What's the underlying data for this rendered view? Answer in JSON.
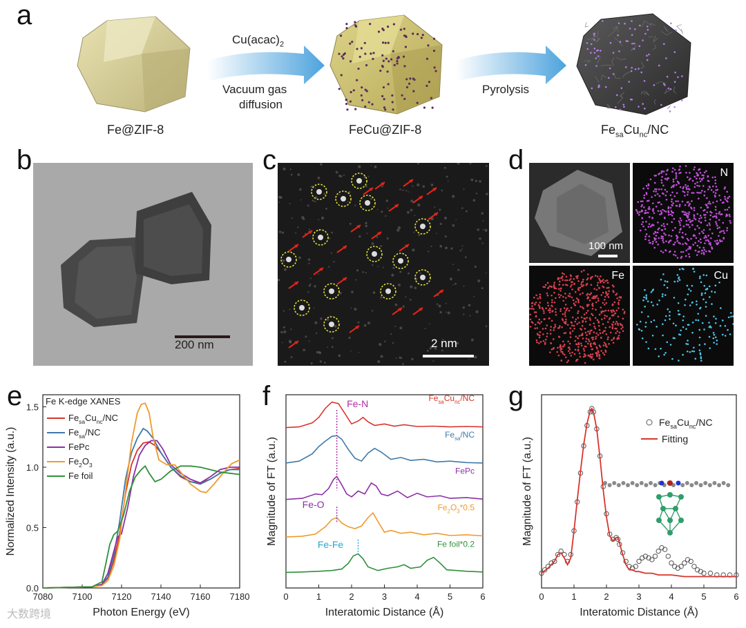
{
  "panel_a": {
    "letter": "a",
    "step1_top": "Cu(acac)",
    "step1_top_sub": "2",
    "step1_bottom_line1": "Vacuum gas",
    "step1_bottom_line2": "diffusion",
    "step2": "Pyrolysis",
    "label1": "Fe@ZIF-8",
    "label2": "FeCu@ZIF-8",
    "label3": {
      "p1": "Fe",
      "s1": "sa",
      "p2": "Cu",
      "s2": "nc",
      "p3": "/NC"
    }
  },
  "panel_b": {
    "letter": "b",
    "scale": "200 nm"
  },
  "panel_c": {
    "letter": "c",
    "scale": "2 nm"
  },
  "panel_d": {
    "letter": "d",
    "scale": "100 nm",
    "map_n": "N",
    "map_fe": "Fe",
    "map_cu": "Cu"
  },
  "panel_e": {
    "letter": "e"
  },
  "panel_f": {
    "letter": "f"
  },
  "panel_g": {
    "letter": "g"
  },
  "watermark": "大数跨境",
  "chart_data": [
    {
      "panel": "e",
      "type": "line",
      "title": "Fe K-edge XANES",
      "xlabel": "Photon Energy (eV)",
      "ylabel": "Normalized Intensity (a.u.)",
      "xlim": [
        7080,
        7180
      ],
      "ylim": [
        0.0,
        1.6
      ],
      "xticks": [
        "7080",
        "7100",
        "7120",
        "7140",
        "7160",
        "7180"
      ],
      "yticks": [
        "0.0",
        "0.5",
        "1.0",
        "1.5"
      ],
      "series": [
        {
          "name": "FesaCunc/NC",
          "color": "#d7342b",
          "x": [
            7080,
            7105,
            7110,
            7113,
            7116,
            7119,
            7122,
            7125,
            7128,
            7131,
            7134,
            7137,
            7140,
            7145,
            7150,
            7155,
            7160,
            7165,
            7170,
            7175,
            7180
          ],
          "y": [
            0.0,
            0.01,
            0.03,
            0.08,
            0.22,
            0.45,
            0.78,
            1.02,
            1.14,
            1.2,
            1.21,
            1.18,
            1.12,
            1.0,
            0.92,
            0.88,
            0.87,
            0.9,
            0.95,
            0.98,
            0.99
          ]
        },
        {
          "name": "Fesa/NC",
          "color": "#3e79a8",
          "x": [
            7080,
            7105,
            7110,
            7113,
            7116,
            7119,
            7122,
            7125,
            7128,
            7131,
            7133,
            7136,
            7140,
            7145,
            7150,
            7155,
            7160,
            7165,
            7170,
            7175,
            7180
          ],
          "y": [
            0.0,
            0.01,
            0.03,
            0.09,
            0.26,
            0.55,
            0.9,
            1.12,
            1.24,
            1.32,
            1.3,
            1.24,
            1.12,
            1.0,
            0.93,
            0.88,
            0.86,
            0.9,
            0.95,
            0.98,
            0.98
          ]
        },
        {
          "name": "FePc",
          "color": "#8b2fa5",
          "x": [
            7080,
            7105,
            7110,
            7113,
            7116,
            7118,
            7120,
            7123,
            7126,
            7129,
            7132,
            7135,
            7138,
            7141,
            7145,
            7150,
            7155,
            7160,
            7165,
            7170,
            7175,
            7180
          ],
          "y": [
            0.0,
            0.01,
            0.03,
            0.12,
            0.3,
            0.42,
            0.45,
            0.66,
            0.92,
            1.1,
            1.18,
            1.22,
            1.22,
            1.15,
            1.02,
            0.95,
            0.9,
            0.87,
            0.92,
            0.98,
            1.0,
            1.0
          ]
        },
        {
          "name": "Fe2O3",
          "color": "#ef9a2a",
          "x": [
            7080,
            7105,
            7110,
            7113,
            7116,
            7119,
            7122,
            7125,
            7128,
            7130,
            7132,
            7134,
            7136,
            7139,
            7143,
            7147,
            7150,
            7155,
            7160,
            7163,
            7167,
            7172,
            7176,
            7180
          ],
          "y": [
            0.0,
            0.01,
            0.02,
            0.06,
            0.18,
            0.4,
            0.8,
            1.2,
            1.45,
            1.52,
            1.53,
            1.45,
            1.25,
            1.06,
            1.02,
            1.02,
            0.96,
            0.86,
            0.8,
            0.79,
            0.86,
            0.96,
            1.03,
            1.06
          ]
        },
        {
          "name": "Fe foil",
          "color": "#2f8f3a",
          "x": [
            7080,
            7105,
            7110,
            7112,
            7114,
            7116,
            7118,
            7121,
            7124,
            7127,
            7130,
            7132,
            7134,
            7137,
            7140,
            7145,
            7150,
            7155,
            7160,
            7165,
            7170,
            7175,
            7180
          ],
          "y": [
            0.0,
            0.01,
            0.05,
            0.2,
            0.36,
            0.44,
            0.47,
            0.6,
            0.8,
            0.92,
            0.98,
            1.01,
            0.95,
            0.88,
            0.9,
            0.97,
            1.01,
            1.01,
            1.0,
            0.98,
            0.96,
            0.95,
            0.94
          ]
        }
      ]
    },
    {
      "panel": "f",
      "type": "line",
      "xlabel": "Interatomic Distance (Å)",
      "ylabel": "Magnitude of FT (a.u.)",
      "xlim": [
        0,
        6
      ],
      "xticks": [
        "0",
        "1",
        "2",
        "3",
        "4",
        "5",
        "6"
      ],
      "annotations": [
        {
          "text": "Fe-N",
          "x": 1.55,
          "color": "#b02aa8"
        },
        {
          "text": "Fe-O",
          "x": 1.55,
          "color": "#8b2fa5"
        },
        {
          "text": "Fe-Fe",
          "x": 2.2,
          "color": "#2aa6c8"
        }
      ],
      "series": [
        {
          "name": "FesaCunc/NC",
          "color": "#d7342b",
          "offset": 4.0,
          "x": [
            0,
            0.4,
            0.8,
            1.0,
            1.2,
            1.4,
            1.6,
            1.8,
            2.0,
            2.2,
            2.35,
            2.5,
            2.7,
            3.0,
            3.3,
            3.6,
            4.0,
            4.5,
            5.0,
            5.5,
            6.0
          ],
          "y": [
            0.02,
            0.04,
            0.15,
            0.3,
            0.55,
            0.72,
            0.68,
            0.4,
            0.12,
            0.2,
            0.3,
            0.18,
            0.08,
            0.12,
            0.06,
            0.1,
            0.05,
            0.06,
            0.04,
            0.05,
            0.04
          ]
        },
        {
          "name": "Fesa/NC",
          "color": "#3e79a8",
          "offset": 3.0,
          "x": [
            0,
            0.4,
            0.8,
            1.0,
            1.2,
            1.4,
            1.55,
            1.7,
            1.9,
            2.1,
            2.3,
            2.5,
            2.7,
            2.9,
            3.2,
            3.5,
            3.8,
            4.2,
            4.6,
            5.0,
            5.5,
            6.0
          ],
          "y": [
            0.05,
            0.1,
            0.3,
            0.5,
            0.65,
            0.78,
            0.8,
            0.7,
            0.42,
            0.18,
            0.1,
            0.32,
            0.45,
            0.35,
            0.15,
            0.2,
            0.12,
            0.15,
            0.08,
            0.1,
            0.06,
            0.05
          ]
        },
        {
          "name": "FePc",
          "color": "#8b2fa5",
          "offset": 2.0,
          "x": [
            0,
            0.5,
            0.9,
            1.1,
            1.3,
            1.45,
            1.55,
            1.7,
            1.85,
            2.0,
            2.2,
            2.4,
            2.6,
            2.75,
            2.9,
            3.1,
            3.4,
            3.7,
            4.0,
            4.3,
            4.7,
            5.0,
            5.5,
            6.0
          ],
          "y": [
            0.05,
            0.08,
            0.2,
            0.18,
            0.35,
            0.6,
            0.68,
            0.45,
            0.2,
            0.12,
            0.28,
            0.2,
            0.5,
            0.42,
            0.2,
            0.15,
            0.28,
            0.1,
            0.22,
            0.12,
            0.15,
            0.08,
            0.1,
            0.06
          ]
        },
        {
          "name": "Fe2O3*0.5",
          "color": "#ef9a2a",
          "offset": 1.0,
          "x": [
            0,
            0.5,
            0.9,
            1.2,
            1.4,
            1.55,
            1.7,
            1.9,
            2.1,
            2.3,
            2.5,
            2.65,
            2.8,
            3.0,
            3.2,
            3.5,
            3.8,
            4.2,
            4.6,
            5.0,
            5.5,
            6.0
          ],
          "y": [
            0.02,
            0.04,
            0.1,
            0.3,
            0.5,
            0.55,
            0.4,
            0.3,
            0.25,
            0.32,
            0.55,
            0.68,
            0.45,
            0.15,
            0.2,
            0.12,
            0.15,
            0.08,
            0.12,
            0.06,
            0.08,
            0.05
          ]
        },
        {
          "name": "Fe foil*0.2",
          "color": "#2f8f3a",
          "offset": 0.0,
          "x": [
            0,
            0.5,
            1.0,
            1.4,
            1.7,
            1.9,
            2.05,
            2.2,
            2.35,
            2.5,
            2.8,
            3.1,
            3.4,
            3.6,
            3.8,
            4.1,
            4.3,
            4.5,
            4.7,
            4.9,
            5.2,
            5.5,
            6.0
          ],
          "y": [
            0.05,
            0.06,
            0.08,
            0.1,
            0.14,
            0.3,
            0.5,
            0.56,
            0.42,
            0.2,
            0.1,
            0.16,
            0.2,
            0.26,
            0.16,
            0.2,
            0.38,
            0.46,
            0.3,
            0.12,
            0.1,
            0.08,
            0.06
          ]
        }
      ]
    },
    {
      "panel": "g",
      "type": "line",
      "xlabel": "Interatomic Distance (Å)",
      "ylabel": "Magnitude of FT (a.u.)",
      "xlim": [
        0,
        6
      ],
      "xticks": [
        "0",
        "1",
        "2",
        "3",
        "4",
        "5",
        "6"
      ],
      "legend": [
        "FesaCunc/NC",
        "Fitting"
      ],
      "series": [
        {
          "name": "FesaCunc/NC",
          "color": "#555555",
          "style": "scatter",
          "x": [
            0,
            0.1,
            0.2,
            0.3,
            0.4,
            0.5,
            0.6,
            0.7,
            0.8,
            0.9,
            1.0,
            1.1,
            1.2,
            1.3,
            1.4,
            1.5,
            1.55,
            1.6,
            1.7,
            1.8,
            1.9,
            2.0,
            2.1,
            2.2,
            2.3,
            2.35,
            2.4,
            2.5,
            2.6,
            2.7,
            2.8,
            2.9,
            3.0,
            3.1,
            3.2,
            3.3,
            3.4,
            3.5,
            3.6,
            3.7,
            3.8,
            3.9,
            4.0,
            4.1,
            4.2,
            4.3,
            4.4,
            4.5,
            4.6,
            4.7,
            4.8,
            4.9,
            5.0,
            5.2,
            5.4,
            5.6,
            5.8,
            6.0
          ],
          "y": [
            0.03,
            0.05,
            0.07,
            0.09,
            0.1,
            0.14,
            0.16,
            0.14,
            0.1,
            0.14,
            0.28,
            0.45,
            0.62,
            0.78,
            0.9,
            0.98,
            1.0,
            0.98,
            0.88,
            0.72,
            0.54,
            0.38,
            0.26,
            0.23,
            0.24,
            0.23,
            0.2,
            0.15,
            0.1,
            0.07,
            0.06,
            0.07,
            0.1,
            0.12,
            0.13,
            0.12,
            0.11,
            0.13,
            0.16,
            0.18,
            0.17,
            0.13,
            0.09,
            0.07,
            0.06,
            0.07,
            0.09,
            0.11,
            0.1,
            0.07,
            0.05,
            0.04,
            0.03,
            0.03,
            0.02,
            0.02,
            0.02,
            0.02
          ]
        },
        {
          "name": "Fitting",
          "color": "#d7342b",
          "style": "line",
          "x": [
            0,
            0.2,
            0.4,
            0.5,
            0.6,
            0.7,
            0.8,
            0.9,
            1.0,
            1.1,
            1.2,
            1.3,
            1.4,
            1.5,
            1.55,
            1.6,
            1.7,
            1.8,
            1.9,
            2.0,
            2.1,
            2.2,
            2.3,
            2.35,
            2.4,
            2.5,
            2.6,
            2.7,
            2.8,
            2.9,
            3.0,
            3.2,
            3.4,
            3.6,
            3.8,
            4.0,
            4.4,
            5.0,
            6.0
          ],
          "y": [
            0.03,
            0.06,
            0.1,
            0.14,
            0.15,
            0.12,
            0.08,
            0.12,
            0.28,
            0.46,
            0.63,
            0.79,
            0.91,
            0.99,
            1.0,
            0.98,
            0.88,
            0.71,
            0.52,
            0.36,
            0.25,
            0.22,
            0.24,
            0.24,
            0.21,
            0.14,
            0.08,
            0.05,
            0.05,
            0.04,
            0.04,
            0.03,
            0.03,
            0.02,
            0.02,
            0.02,
            0.01,
            0.01,
            0.01
          ]
        }
      ]
    }
  ]
}
